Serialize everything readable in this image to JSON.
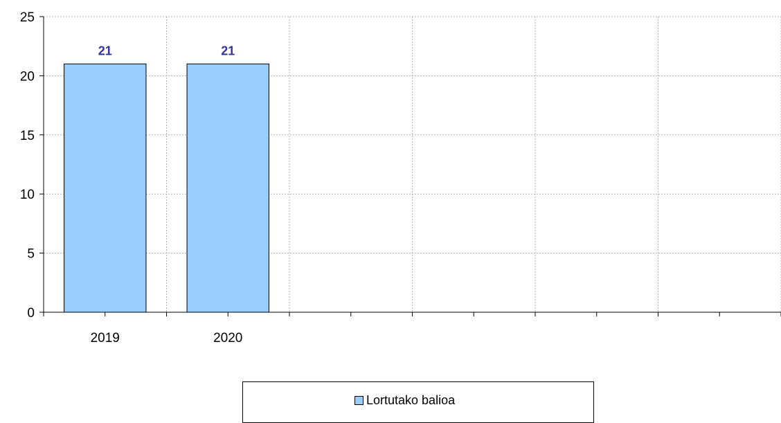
{
  "chart_data": {
    "type": "bar",
    "categories": [
      "2019",
      "2020",
      "",
      "",
      "",
      ""
    ],
    "series": [
      {
        "name": "Lortutako balioa",
        "values": [
          21,
          21,
          null,
          null,
          null,
          null
        ],
        "color": "#99ccff"
      }
    ],
    "data_labels": [
      "21",
      "21"
    ],
    "title": "",
    "xlabel": "",
    "ylabel": "",
    "ylim": [
      0,
      25
    ],
    "yticks": [
      0,
      5,
      10,
      15,
      20,
      25
    ],
    "grid": true,
    "legend_position": "bottom-center",
    "colors": {
      "bar_fill": "#99ccff",
      "bar_stroke": "#000000",
      "data_label": "#333399",
      "grid": "#b0b0b0"
    }
  },
  "legend": {
    "label": "Lortutako balioa"
  }
}
